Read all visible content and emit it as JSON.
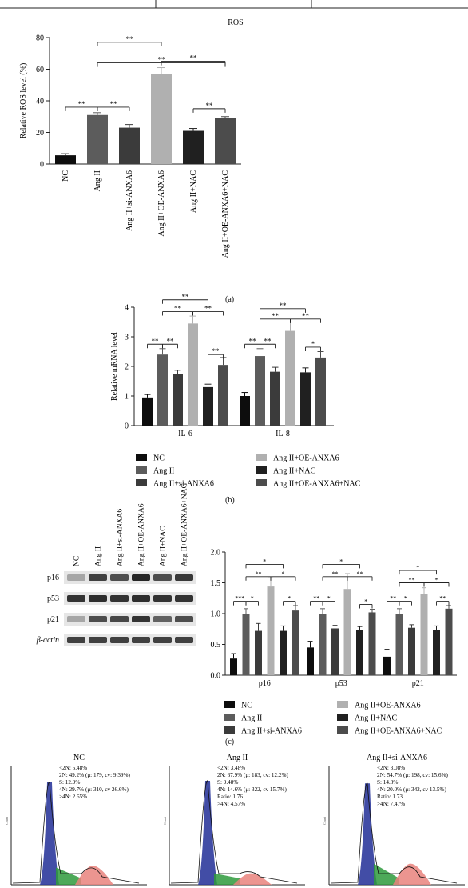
{
  "top_axis_label": "ROS",
  "panel_labels": {
    "a": "(a)",
    "b": "(b)",
    "c": "(c)"
  },
  "colors": {
    "NC": "#0d0d0d",
    "AngII": "#5c5c5c",
    "siANXA6": "#3b3b3b",
    "OE": "#b0b0b0",
    "NAC": "#202020",
    "OENAC": "#4c4c4c",
    "flow_blue": "#2d3a9c",
    "flow_green": "#2e9a3c",
    "flow_red": "#e9837c"
  },
  "chart_data": [
    {
      "id": "ros",
      "type": "bar",
      "ylabel": "Relative ROS level (%)",
      "ylim": [
        0,
        80
      ],
      "yticks": [
        0,
        20,
        40,
        60,
        80
      ],
      "categories": [
        "NC",
        "Ang II",
        "Ang II+si-ANXA6",
        "Ang II+OE-ANXA6",
        "Ang II+NAC",
        "Ang II+OE-ANXA6+NAC"
      ],
      "values": [
        5.5,
        31,
        23,
        57,
        21,
        29
      ],
      "errors": [
        1,
        1.5,
        2,
        4,
        1.5,
        1
      ],
      "significance": [
        {
          "from": 0,
          "to": 1,
          "label": "**"
        },
        {
          "from": 1,
          "to": 2,
          "label": "**"
        },
        {
          "from": 1,
          "to": 3,
          "label": "**"
        },
        {
          "from": 1,
          "to": 5,
          "label": "**"
        },
        {
          "from": 3,
          "to": 5,
          "label": "**"
        },
        {
          "from": 4,
          "to": 5,
          "label": "**"
        }
      ]
    },
    {
      "id": "mrna",
      "type": "bar",
      "ylabel": "Relative mRNA level",
      "ylim": [
        0,
        4
      ],
      "yticks": [
        0,
        1,
        2,
        3,
        4
      ],
      "categories": [
        "IL-6",
        "IL-8"
      ],
      "series": [
        {
          "name": "NC",
          "values": [
            0.95,
            1.0
          ],
          "errors": [
            0.1,
            0.12
          ]
        },
        {
          "name": "Ang II",
          "values": [
            2.4,
            2.35
          ],
          "errors": [
            0.2,
            0.25
          ]
        },
        {
          "name": "Ang II+si-ANXA6",
          "values": [
            1.75,
            1.82
          ],
          "errors": [
            0.12,
            0.15
          ]
        },
        {
          "name": "Ang II+OE-ANXA6",
          "values": [
            3.45,
            3.2
          ],
          "errors": [
            0.25,
            0.3
          ]
        },
        {
          "name": "Ang II+NAC",
          "values": [
            1.3,
            1.8
          ],
          "errors": [
            0.1,
            0.15
          ]
        },
        {
          "name": "Ang II+OE-ANXA6+NAC",
          "values": [
            2.05,
            2.3
          ],
          "errors": [
            0.25,
            0.2
          ]
        }
      ],
      "significance": [
        {
          "group": 0,
          "from": 0,
          "to": 1,
          "label": "**",
          "y": 2.75
        },
        {
          "group": 0,
          "from": 1,
          "to": 2,
          "label": "**",
          "y": 2.75
        },
        {
          "group": 0,
          "from": 1,
          "to": 3,
          "label": "**",
          "y": 3.85
        },
        {
          "group": 0,
          "from": 3,
          "to": 5,
          "label": "**",
          "y": 3.85
        },
        {
          "group": 0,
          "from": 4,
          "to": 5,
          "label": "**",
          "y": 2.4
        },
        {
          "group": 0,
          "from": 1,
          "to": 4,
          "label": "**",
          "y": 4.25
        },
        {
          "group": 1,
          "from": 0,
          "to": 1,
          "label": "**",
          "y": 2.75
        },
        {
          "group": 1,
          "from": 1,
          "to": 2,
          "label": "**",
          "y": 2.75
        },
        {
          "group": 1,
          "from": 1,
          "to": 3,
          "label": "**",
          "y": 3.6
        },
        {
          "group": 1,
          "from": 3,
          "to": 5,
          "label": "**",
          "y": 3.6
        },
        {
          "group": 1,
          "from": 4,
          "to": 5,
          "label": "*",
          "y": 2.65
        },
        {
          "group": 1,
          "from": 1,
          "to": 4,
          "label": "**",
          "y": 3.95
        }
      ]
    },
    {
      "id": "protein",
      "type": "bar",
      "ylim": [
        0,
        2
      ],
      "yticks": [
        "0.0",
        "0.5",
        "1.0",
        "1.5",
        "2.0"
      ],
      "categories": [
        "p16",
        "p53",
        "p21"
      ],
      "series": [
        {
          "name": "NC",
          "values": [
            0.27,
            0.45,
            0.3
          ],
          "errors": [
            0.08,
            0.1,
            0.12
          ]
        },
        {
          "name": "Ang II",
          "values": [
            1.0,
            1.0,
            1.0
          ],
          "errors": [
            0.08,
            0.08,
            0.08
          ]
        },
        {
          "name": "Ang II+si-ANXA6",
          "values": [
            0.72,
            0.76,
            0.77
          ],
          "errors": [
            0.12,
            0.05,
            0.05
          ]
        },
        {
          "name": "Ang II+OE-ANXA6",
          "values": [
            1.44,
            1.4,
            1.32
          ],
          "errors": [
            0.14,
            0.25,
            0.1
          ]
        },
        {
          "name": "Ang II+NAC",
          "values": [
            0.72,
            0.74,
            0.74
          ],
          "errors": [
            0.08,
            0.05,
            0.06
          ]
        },
        {
          "name": "Ang II+OE-ANXA6+NAC",
          "values": [
            1.05,
            1.02,
            1.08
          ],
          "errors": [
            0.08,
            0.05,
            0.05
          ]
        }
      ],
      "significance": [
        {
          "group": 0,
          "from": 0,
          "to": 1,
          "label": "***",
          "y": 1.2
        },
        {
          "group": 0,
          "from": 1,
          "to": 2,
          "label": "*",
          "y": 1.2
        },
        {
          "group": 0,
          "from": 1,
          "to": 3,
          "label": "**",
          "y": 1.6
        },
        {
          "group": 0,
          "from": 3,
          "to": 5,
          "label": "*",
          "y": 1.6
        },
        {
          "group": 0,
          "from": 4,
          "to": 5,
          "label": "*",
          "y": 1.2
        },
        {
          "group": 0,
          "from": 1,
          "to": 4,
          "label": "*",
          "y": 1.8
        },
        {
          "group": 1,
          "from": 0,
          "to": 1,
          "label": "**",
          "y": 1.2
        },
        {
          "group": 1,
          "from": 1,
          "to": 2,
          "label": "*",
          "y": 1.2
        },
        {
          "group": 1,
          "from": 1,
          "to": 3,
          "label": "**",
          "y": 1.6
        },
        {
          "group": 1,
          "from": 3,
          "to": 5,
          "label": "**",
          "y": 1.6
        },
        {
          "group": 1,
          "from": 4,
          "to": 5,
          "label": "*",
          "y": 1.15
        },
        {
          "group": 1,
          "from": 1,
          "to": 4,
          "label": "*",
          "y": 1.8
        },
        {
          "group": 2,
          "from": 0,
          "to": 1,
          "label": "**",
          "y": 1.2
        },
        {
          "group": 2,
          "from": 1,
          "to": 2,
          "label": "*",
          "y": 1.2
        },
        {
          "group": 2,
          "from": 1,
          "to": 3,
          "label": "**",
          "y": 1.5
        },
        {
          "group": 2,
          "from": 3,
          "to": 5,
          "label": "*",
          "y": 1.5
        },
        {
          "group": 2,
          "from": 4,
          "to": 5,
          "label": "**",
          "y": 1.2
        },
        {
          "group": 2,
          "from": 1,
          "to": 4,
          "label": "*",
          "y": 1.7
        }
      ]
    }
  ],
  "legend_items": [
    "NC",
    "Ang II+OE-ANXA6",
    "Ang II",
    "Ang II+NAC",
    "Ang II+si-ANXA6",
    "Ang II+OE-ANXA6+NAC"
  ],
  "blot": {
    "lane_labels": [
      "NC",
      "Ang II",
      "Ang II+si-ANXA6",
      "Ang II+OE-ANXA6",
      "Ang II+NAC",
      "Ang II+OE-ANXA6+NAC"
    ],
    "rows": [
      {
        "label": "p16",
        "intensities": [
          0.35,
          0.75,
          0.7,
          0.85,
          0.7,
          0.78
        ]
      },
      {
        "label": "p53",
        "intensities": [
          0.8,
          0.82,
          0.8,
          0.82,
          0.8,
          0.8
        ]
      },
      {
        "label": "p21",
        "intensities": [
          0.35,
          0.7,
          0.72,
          0.8,
          0.62,
          0.7
        ]
      },
      {
        "label": "β-actin",
        "intensities": [
          0.75,
          0.75,
          0.75,
          0.75,
          0.75,
          0.75
        ]
      }
    ]
  },
  "flow": [
    {
      "title": "NC",
      "stats": [
        "<2N: 5.48%",
        "2N: 49.2% (μ: 179, cv: 9.39%)",
        "S: 12.9%",
        "4N: 29.7% (μ: 310, cv 26.6%)",
        ">4N: 2.65%"
      ]
    },
    {
      "title": "Ang II",
      "stats": [
        "<2N: 3.48%",
        "2N: 67.9% (μ: 183, cv: 12.2%)",
        "S: 9.48%",
        "4N: 14.6% (μ: 322, cv 15.7%)",
        "Ratio: 1.76",
        ">4N: 4.57%"
      ]
    },
    {
      "title": "Ang II+si-ANXA6",
      "stats": [
        "<2N: 3.08%",
        "2N: 54.7% (μ: 198, cv: 15.6%)",
        "S: 14.8%",
        "4N: 20.0% (μ: 342, cv 13.5%)",
        "Ratio: 1.73",
        ">4N: 7.47%"
      ]
    }
  ]
}
